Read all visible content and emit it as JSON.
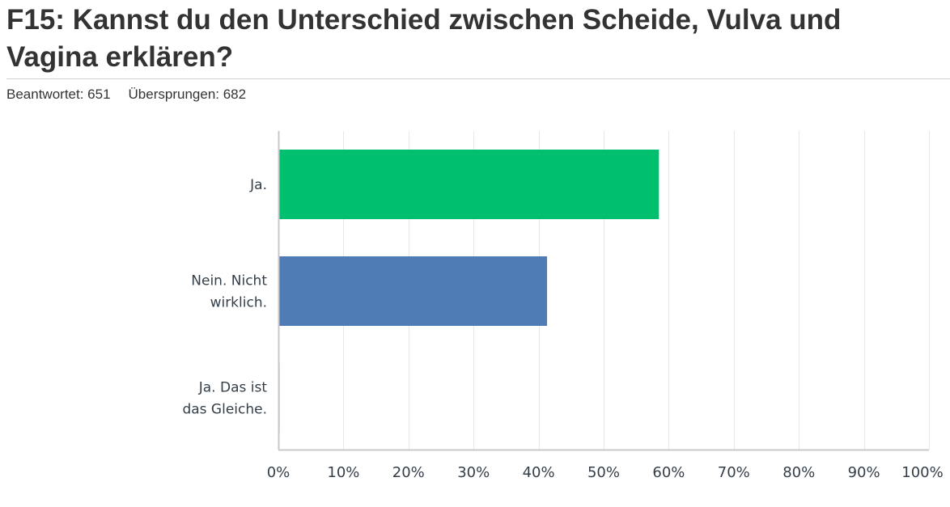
{
  "question": {
    "title": "F15: Kannst du den Unterschied zwischen Scheide, Vulva und Vagina erklären?"
  },
  "stats": {
    "answered": "Beantwortet: 651",
    "skipped": "Übersprungen: 682"
  },
  "chart_data": {
    "type": "bar",
    "orientation": "horizontal",
    "title": "",
    "xlabel": "",
    "ylabel": "",
    "categories": [
      [
        "Ja."
      ],
      [
        "Nein. Nicht",
        "wirklich."
      ],
      [
        "Ja. Das ist",
        "das Gleiche."
      ]
    ],
    "values": [
      58.5,
      41.3,
      0.2
    ],
    "colors": [
      "#00bf6f",
      "#507cb6",
      "#f05b24"
    ],
    "xlim": [
      0,
      100
    ],
    "ticks": [
      "0%",
      "10%",
      "20%",
      "30%",
      "40%",
      "50%",
      "60%",
      "70%",
      "80%",
      "90%",
      "100%"
    ],
    "grid": true,
    "grid_color": "#e8e8e8",
    "axis_color": "#c8c8c8"
  }
}
